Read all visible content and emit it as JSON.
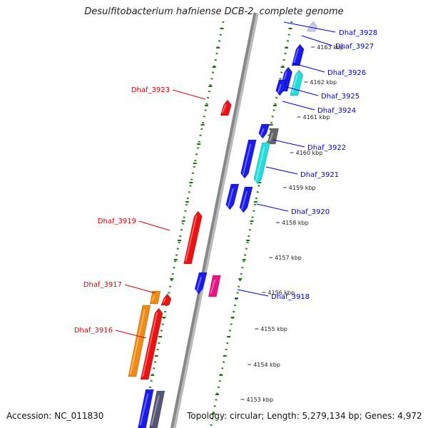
{
  "title": "Desulfitobacterium hafniense DCB-2, complete genome",
  "footer": {
    "accession": "Accession: NC_011830",
    "summary": "Topology: circular; Length: 5,279,134 bp; Genes: 4,972"
  },
  "colors": {
    "backbone": "#888888",
    "strand_track_dots": "#2a8a1e",
    "forward_label": "#0000cc",
    "reverse_label": "#dd0000",
    "blue_gene": "#1a1aee",
    "red_gene": "#ee1111",
    "cyan_gene": "#22dddd",
    "gray_gene": "#666666",
    "magenta_gene": "#ee1188",
    "orange_gene": "#f08a10",
    "pale_gene": "#c8c8f0",
    "slate_gene": "#555577"
  },
  "scale_ticks": [
    "4163 kbp",
    "4162 kbp",
    "4161 kbp",
    "4160 kbp",
    "4159 kbp",
    "4158 kbp",
    "4157 kbp",
    "4156 kbp",
    "4155 kbp",
    "4154 kbp",
    "4153 kbp"
  ],
  "gene_labels": [
    {
      "text": "Dhaf_3928",
      "strand": "forward"
    },
    {
      "text": "Dhaf_3927",
      "strand": "forward"
    },
    {
      "text": "Dhaf_3926",
      "strand": "forward"
    },
    {
      "text": "Dhaf_3925",
      "strand": "forward"
    },
    {
      "text": "Dhaf_3924",
      "strand": "forward"
    },
    {
      "text": "Dhaf_3922",
      "strand": "forward"
    },
    {
      "text": "Dhaf_3921",
      "strand": "forward"
    },
    {
      "text": "Dhaf_3920",
      "strand": "forward"
    },
    {
      "text": "Dhaf_3918",
      "strand": "forward"
    },
    {
      "text": "Dhaf_3923",
      "strand": "reverse"
    },
    {
      "text": "Dhaf_3919",
      "strand": "reverse"
    },
    {
      "text": "Dhaf_3917",
      "strand": "reverse"
    },
    {
      "text": "Dhaf_3916",
      "strand": "reverse"
    }
  ],
  "genes": [
    {
      "strand": "forward",
      "color": "pale_gene",
      "arrow": "up"
    },
    {
      "strand": "forward",
      "color": "blue_gene",
      "arrow": "up"
    },
    {
      "strand": "forward",
      "color": "blue_gene",
      "arrow": "up"
    },
    {
      "strand": "forward",
      "color": "blue_gene",
      "arrow": "down"
    },
    {
      "strand": "forward",
      "color": "cyan_gene",
      "arrow": "up"
    },
    {
      "strand": "forward",
      "color": "blue_gene",
      "arrow": "down"
    },
    {
      "strand": "forward",
      "color": "gray_gene",
      "arrow": "none"
    },
    {
      "strand": "forward",
      "color": "blue_gene",
      "arrow": "down"
    },
    {
      "strand": "forward",
      "color": "cyan_gene",
      "arrow": "down"
    },
    {
      "strand": "forward",
      "color": "blue_gene",
      "arrow": "down"
    },
    {
      "strand": "forward",
      "color": "blue_gene",
      "arrow": "down"
    },
    {
      "strand": "forward",
      "color": "blue_gene",
      "arrow": "down"
    },
    {
      "strand": "forward",
      "color": "magenta_gene",
      "arrow": "none"
    },
    {
      "strand": "reverse",
      "color": "red_gene",
      "arrow": "up"
    },
    {
      "strand": "reverse",
      "color": "red_gene",
      "arrow": "up"
    },
    {
      "strand": "reverse",
      "color": "orange_gene",
      "arrow": "none"
    },
    {
      "strand": "reverse",
      "color": "red_gene",
      "arrow": "up"
    },
    {
      "strand": "reverse",
      "color": "orange_gene",
      "arrow": "none"
    },
    {
      "strand": "reverse",
      "color": "red_gene",
      "arrow": "up"
    },
    {
      "strand": "forward",
      "color": "blue_gene",
      "arrow": "none"
    },
    {
      "strand": "forward",
      "color": "slate_gene",
      "arrow": "none"
    }
  ]
}
